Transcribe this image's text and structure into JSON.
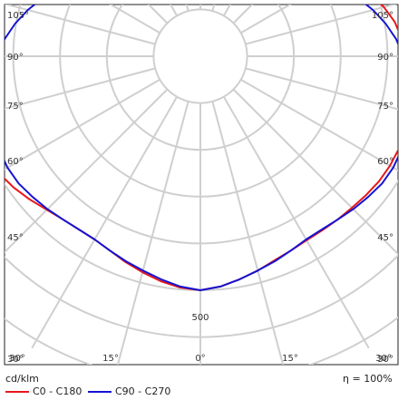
{
  "chart_data": {
    "type": "polar",
    "unit_label": "cd/klm",
    "efficiency_symbol": "η",
    "efficiency_eq": "=",
    "efficiency_value": "100%",
    "radial_tick": "500",
    "radial_tick_value": 500,
    "radial_max": 720,
    "spoke_step_deg": 15,
    "ring_values": [
      100,
      200,
      300,
      400,
      500,
      600,
      700
    ],
    "angle_labels": {
      "left": [
        "105°",
        "90°",
        "75°",
        "60°",
        "45°",
        "30°"
      ],
      "right": [
        "105°",
        "90°",
        "75°",
        "60°",
        "45°",
        "30°"
      ],
      "bottom": [
        "30°",
        "15°",
        "0°",
        "15°",
        "30°"
      ]
    },
    "angles_deg": [
      0,
      5,
      10,
      15,
      20,
      25,
      30,
      35,
      40,
      45,
      50,
      55,
      60,
      65,
      70,
      75,
      80,
      85,
      90,
      95,
      100,
      105,
      110,
      115,
      120,
      125,
      130,
      135,
      140,
      145,
      150,
      155,
      160,
      165,
      170,
      175,
      180
    ],
    "series": [
      {
        "name": "C0 - C180",
        "color": "#e8161b",
        "left": [
          500,
          496,
          488,
          478,
          468,
          458,
          452,
          452,
          456,
          464,
          476,
          488,
          498,
          504,
          504,
          500,
          492,
          484,
          476,
          466,
          456,
          444,
          430,
          410,
          384,
          352,
          314,
          278,
          248,
          224,
          206,
          194,
          184,
          176,
          168,
          162,
          158
        ],
        "right": [
          500,
          494,
          484,
          474,
          464,
          458,
          454,
          454,
          456,
          458,
          462,
          466,
          468,
          468,
          466,
          462,
          454,
          446,
          440,
          432,
          422,
          406,
          386,
          360,
          330,
          298,
          266,
          238,
          216,
          200,
          188,
          178,
          170,
          164,
          160,
          158,
          158
        ]
      },
      {
        "name": "C90 - C270",
        "color": "#1414d2",
        "left": [
          500,
          494,
          484,
          474,
          466,
          458,
          452,
          452,
          456,
          462,
          468,
          474,
          476,
          474,
          470,
          464,
          456,
          446,
          434,
          420,
          402,
          382,
          360,
          336,
          310,
          284,
          260,
          240,
          222,
          206,
          194,
          184,
          176,
          168,
          162,
          158,
          158
        ],
        "right": [
          500,
          494,
          484,
          474,
          466,
          458,
          452,
          452,
          456,
          462,
          468,
          474,
          476,
          474,
          470,
          464,
          456,
          446,
          434,
          420,
          402,
          382,
          360,
          336,
          310,
          284,
          260,
          240,
          222,
          206,
          194,
          184,
          176,
          168,
          162,
          158,
          158
        ]
      }
    ]
  }
}
